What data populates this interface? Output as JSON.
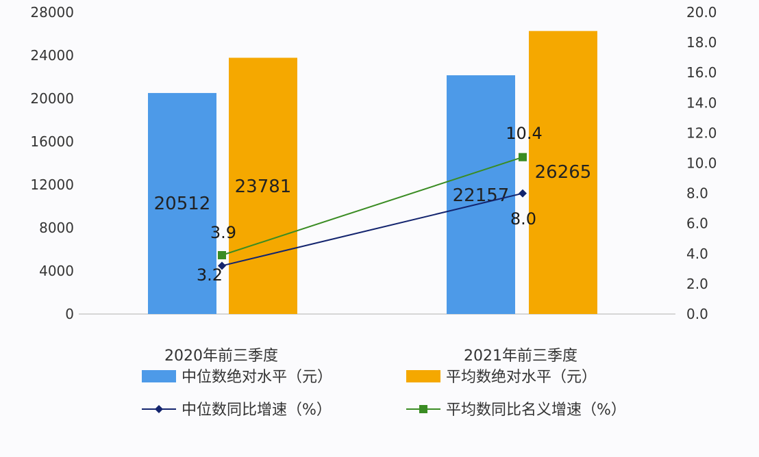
{
  "chart_data": {
    "type": "bar",
    "categories": [
      "2020年前三季度",
      "2021年前三季度"
    ],
    "series": [
      {
        "name": "中位数绝对水平（元）",
        "kind": "bar",
        "axis": "left",
        "color": "#4d9ae8",
        "values": [
          20512,
          22157
        ],
        "labels": [
          "20512",
          "22157"
        ]
      },
      {
        "name": "平均数绝对水平（元）",
        "kind": "bar",
        "axis": "left",
        "color": "#f5a800",
        "values": [
          23781,
          26265
        ],
        "labels": [
          "23781",
          "26265"
        ]
      },
      {
        "name": "中位数同比增速（%）",
        "kind": "line",
        "axis": "right",
        "color": "#13246e",
        "marker": "diamond",
        "values": [
          3.2,
          8.0
        ],
        "labels": [
          "3.2",
          "8.0"
        ]
      },
      {
        "name": "平均数同比名义增速（%）",
        "kind": "line",
        "axis": "right",
        "color": "#3a8c23",
        "marker": "square",
        "values": [
          3.9,
          10.4
        ],
        "labels": [
          "3.9",
          "10.4"
        ]
      }
    ],
    "y_left": {
      "min": 0,
      "max": 28000,
      "ticks": [
        "0",
        "4000",
        "8000",
        "12000",
        "16000",
        "20000",
        "24000",
        "28000"
      ]
    },
    "y_right": {
      "min": 0,
      "max": 20,
      "ticks": [
        "0.0",
        "2.0",
        "4.0",
        "6.0",
        "8.0",
        "10.0",
        "12.0",
        "14.0",
        "16.0",
        "18.0",
        "20.0"
      ]
    },
    "grid": false,
    "legend_position": "bottom"
  }
}
